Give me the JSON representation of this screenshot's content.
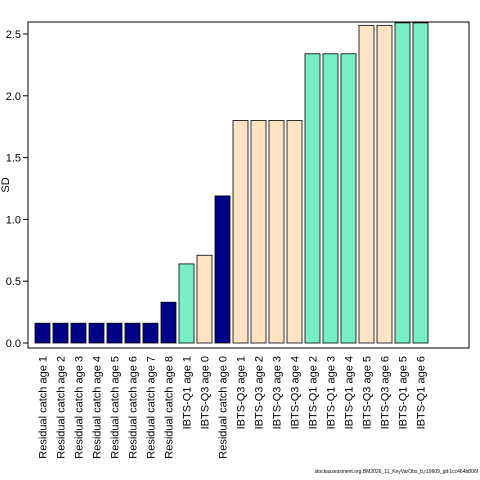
{
  "chart_data": {
    "type": "bar",
    "ylabel": "SD",
    "ylim": [
      0,
      2.6
    ],
    "yticks": [
      0.0,
      0.5,
      1.0,
      1.5,
      2.0,
      2.5
    ],
    "ytick_labels": [
      "0.0",
      "0.5",
      "1.0",
      "1.5",
      "2.0",
      "2.5"
    ],
    "grid": false,
    "colors": {
      "residual": "#00008b",
      "ibts_q1": "#76eec6",
      "ibts_q3": "#ffe4c4"
    },
    "categories": [
      "Residual catch age 1",
      "Residual catch age 2",
      "Residual catch age 3",
      "Residual catch age 4",
      "Residual catch age 5",
      "Residual catch age 6",
      "Residual catch age 7",
      "Residual catch age 8",
      "IBTS-Q1 age 1",
      "IBTS-Q3 age 0",
      "Residual catch age 0",
      "IBTS-Q3 age 1",
      "IBTS-Q3 age 2",
      "IBTS-Q3 age 3",
      "IBTS-Q3 age 4",
      "IBTS-Q1 age 2",
      "IBTS-Q1 age 3",
      "IBTS-Q1 age 4",
      "IBTS-Q3 age 5",
      "IBTS-Q3 age 6",
      "IBTS-Q1 age 5",
      "IBTS-Q1 age 6"
    ],
    "values": [
      0.16,
      0.16,
      0.16,
      0.16,
      0.16,
      0.16,
      0.16,
      0.33,
      0.64,
      0.71,
      1.19,
      1.8,
      1.8,
      1.8,
      1.8,
      2.34,
      2.34,
      2.34,
      2.57,
      2.57,
      2.59,
      2.59
    ],
    "bar_groups": [
      "residual",
      "residual",
      "residual",
      "residual",
      "residual",
      "residual",
      "residual",
      "residual",
      "ibts_q1",
      "ibts_q3",
      "residual",
      "ibts_q3",
      "ibts_q3",
      "ibts_q3",
      "ibts_q3",
      "ibts_q1",
      "ibts_q1",
      "ibts_q1",
      "ibts_q3",
      "ibts_q3",
      "ibts_q1",
      "ibts_q1"
    ]
  },
  "footer": {
    "text": "stockassessment.org,BM2026_11_KeyVarObs_b,r19609_git:1cc464b806f"
  }
}
